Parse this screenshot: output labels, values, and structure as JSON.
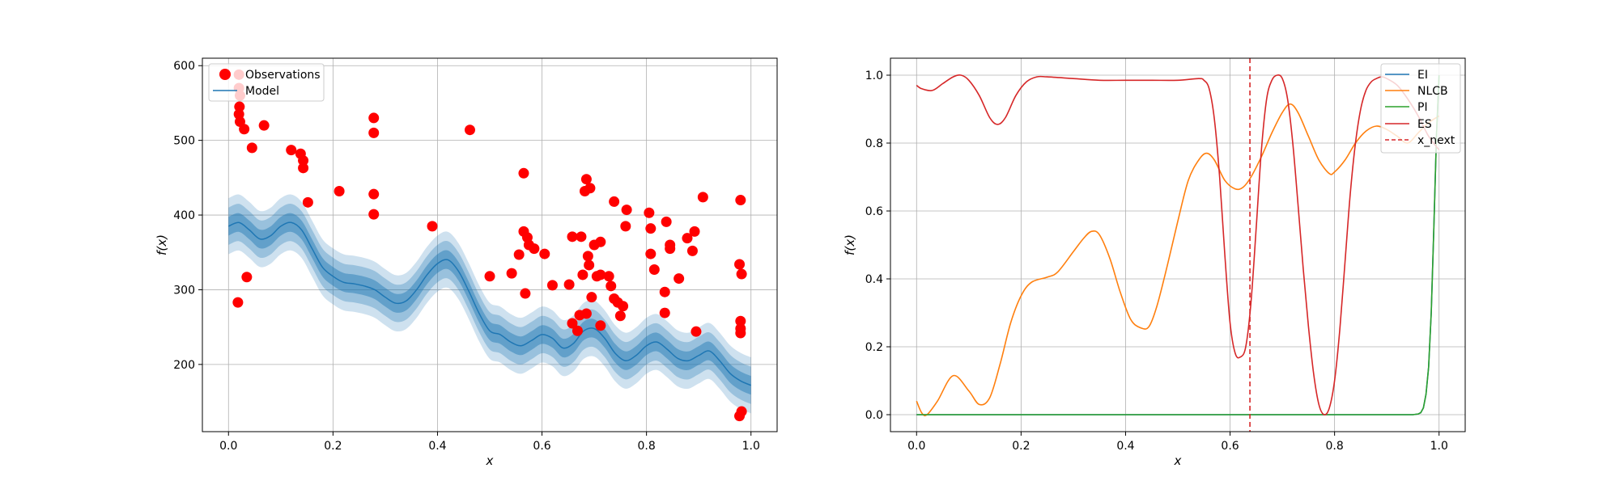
{
  "chart_data": [
    {
      "type": "line",
      "panel": "left",
      "xlabel": "x",
      "ylabel": "f(x)",
      "xlim": [
        -0.05,
        1.05
      ],
      "ylim": [
        110,
        610
      ],
      "xticks": [
        0.0,
        0.2,
        0.4,
        0.6,
        0.8,
        1.0
      ],
      "xtick_labels": [
        "0.0",
        "0.2",
        "0.4",
        "0.6",
        "0.8",
        "1.0"
      ],
      "yticks": [
        200,
        300,
        400,
        500,
        600
      ],
      "ytick_labels": [
        "200",
        "300",
        "400",
        "500",
        "600"
      ],
      "grid": true,
      "legend": {
        "position": "top-left",
        "entries": [
          {
            "label": "Observations",
            "marker": "circle",
            "color": "#ff0000"
          },
          {
            "label": "Model",
            "marker": "line",
            "color": "#1f77b4"
          }
        ]
      },
      "model": {
        "name": "Model",
        "color": "#1f77b4",
        "band_sigmas": [
          1,
          2,
          3
        ],
        "std": 12.5,
        "x": [
          0.0,
          0.02,
          0.04,
          0.06,
          0.08,
          0.1,
          0.12,
          0.14,
          0.16,
          0.18,
          0.2,
          0.22,
          0.24,
          0.26,
          0.28,
          0.3,
          0.32,
          0.34,
          0.36,
          0.38,
          0.4,
          0.42,
          0.44,
          0.46,
          0.48,
          0.5,
          0.52,
          0.54,
          0.56,
          0.58,
          0.6,
          0.62,
          0.64,
          0.66,
          0.68,
          0.7,
          0.72,
          0.74,
          0.76,
          0.78,
          0.8,
          0.82,
          0.84,
          0.86,
          0.88,
          0.9,
          0.92,
          0.94,
          0.96,
          0.98,
          1.0
        ],
        "y": [
          385,
          390,
          380,
          368,
          372,
          385,
          390,
          380,
          355,
          330,
          318,
          310,
          308,
          305,
          300,
          290,
          282,
          285,
          300,
          320,
          335,
          340,
          325,
          298,
          268,
          245,
          240,
          230,
          225,
          232,
          240,
          235,
          222,
          228,
          245,
          248,
          235,
          215,
          205,
          212,
          225,
          230,
          220,
          208,
          205,
          212,
          218,
          205,
          188,
          178,
          172
        ]
      },
      "observations": {
        "name": "Observations",
        "color": "#ff0000",
        "points": [
          [
            0.02,
            588
          ],
          [
            0.02,
            570
          ],
          [
            0.022,
            560
          ],
          [
            0.021,
            545
          ],
          [
            0.02,
            535
          ],
          [
            0.022,
            525
          ],
          [
            0.03,
            515
          ],
          [
            0.045,
            490
          ],
          [
            0.068,
            520
          ],
          [
            0.018,
            283
          ],
          [
            0.035,
            317
          ],
          [
            0.12,
            487
          ],
          [
            0.138,
            482
          ],
          [
            0.143,
            473
          ],
          [
            0.143,
            463
          ],
          [
            0.152,
            417
          ],
          [
            0.212,
            432
          ],
          [
            0.278,
            530
          ],
          [
            0.278,
            510
          ],
          [
            0.278,
            428
          ],
          [
            0.278,
            401
          ],
          [
            0.39,
            385
          ],
          [
            0.462,
            514
          ],
          [
            0.5,
            318
          ],
          [
            0.542,
            322
          ],
          [
            0.556,
            347
          ],
          [
            0.565,
            456
          ],
          [
            0.565,
            378
          ],
          [
            0.572,
            370
          ],
          [
            0.568,
            295
          ],
          [
            0.575,
            360
          ],
          [
            0.585,
            355
          ],
          [
            0.605,
            348
          ],
          [
            0.62,
            306
          ],
          [
            0.652,
            307
          ],
          [
            0.658,
            371
          ],
          [
            0.658,
            255
          ],
          [
            0.668,
            245
          ],
          [
            0.672,
            266
          ],
          [
            0.675,
            371
          ],
          [
            0.678,
            320
          ],
          [
            0.685,
            448
          ],
          [
            0.682,
            432
          ],
          [
            0.688,
            345
          ],
          [
            0.685,
            268
          ],
          [
            0.69,
            333
          ],
          [
            0.692,
            436
          ],
          [
            0.695,
            290
          ],
          [
            0.7,
            360
          ],
          [
            0.705,
            318
          ],
          [
            0.712,
            364
          ],
          [
            0.712,
            252
          ],
          [
            0.712,
            320
          ],
          [
            0.728,
            318
          ],
          [
            0.732,
            305
          ],
          [
            0.738,
            418
          ],
          [
            0.738,
            288
          ],
          [
            0.745,
            283
          ],
          [
            0.75,
            265
          ],
          [
            0.755,
            278
          ],
          [
            0.76,
            385
          ],
          [
            0.762,
            407
          ],
          [
            0.805,
            403
          ],
          [
            0.808,
            382
          ],
          [
            0.808,
            348
          ],
          [
            0.815,
            327
          ],
          [
            0.835,
            297
          ],
          [
            0.835,
            269
          ],
          [
            0.838,
            391
          ],
          [
            0.845,
            360
          ],
          [
            0.845,
            355
          ],
          [
            0.862,
            315
          ],
          [
            0.878,
            369
          ],
          [
            0.888,
            352
          ],
          [
            0.892,
            378
          ],
          [
            0.895,
            244
          ],
          [
            0.908,
            424
          ],
          [
            0.978,
            334
          ],
          [
            0.98,
            420
          ],
          [
            0.982,
            321
          ],
          [
            0.98,
            258
          ],
          [
            0.98,
            248
          ],
          [
            0.98,
            242
          ],
          [
            0.982,
            137
          ],
          [
            0.978,
            131
          ]
        ]
      }
    },
    {
      "type": "line",
      "panel": "right",
      "xlabel": "x",
      "ylabel": "f(x)",
      "xlim": [
        -0.05,
        1.05
      ],
      "ylim": [
        -0.05,
        1.05
      ],
      "xticks": [
        0.0,
        0.2,
        0.4,
        0.6,
        0.8,
        1.0
      ],
      "xtick_labels": [
        "0.0",
        "0.2",
        "0.4",
        "0.6",
        "0.8",
        "1.0"
      ],
      "yticks": [
        0.0,
        0.2,
        0.4,
        0.6,
        0.8,
        1.0
      ],
      "ytick_labels": [
        "0.0",
        "0.2",
        "0.4",
        "0.6",
        "0.8",
        "1.0"
      ],
      "grid": true,
      "legend": {
        "position": "top-right",
        "entries": [
          {
            "label": "EI",
            "color": "#1f77b4",
            "style": "solid"
          },
          {
            "label": "NLCB",
            "color": "#ff7f0e",
            "style": "solid"
          },
          {
            "label": "PI",
            "color": "#2ca02c",
            "style": "solid"
          },
          {
            "label": "ES",
            "color": "#d62728",
            "style": "solid"
          },
          {
            "label": "x_next",
            "color": "#d62728",
            "style": "dashed"
          }
        ]
      },
      "series": [
        {
          "name": "EI",
          "color": "#1f77b4",
          "x": [
            0.0,
            0.1,
            0.2,
            0.3,
            0.4,
            0.5,
            0.6,
            0.7,
            0.8,
            0.9,
            0.94,
            0.95,
            0.96,
            0.965,
            0.97,
            0.975,
            0.98,
            0.985,
            0.99,
            0.995,
            1.0
          ],
          "y": [
            0.0,
            0.0,
            0.0,
            0.0,
            0.0,
            0.0,
            0.0,
            0.0,
            0.0,
            0.0,
            0.0,
            0.0,
            0.002,
            0.006,
            0.02,
            0.06,
            0.14,
            0.3,
            0.55,
            0.82,
            1.0
          ]
        },
        {
          "name": "NLCB",
          "color": "#ff7f0e",
          "x": [
            0.0,
            0.01,
            0.02,
            0.04,
            0.07,
            0.1,
            0.12,
            0.14,
            0.16,
            0.18,
            0.2,
            0.22,
            0.25,
            0.27,
            0.3,
            0.32,
            0.335,
            0.35,
            0.37,
            0.39,
            0.41,
            0.43,
            0.445,
            0.46,
            0.48,
            0.5,
            0.52,
            0.54,
            0.555,
            0.57,
            0.59,
            0.61,
            0.625,
            0.64,
            0.66,
            0.68,
            0.7,
            0.715,
            0.73,
            0.75,
            0.77,
            0.79,
            0.8,
            0.82,
            0.84,
            0.86,
            0.88,
            0.9,
            0.92,
            0.94,
            0.96,
            0.98,
            1.0
          ],
          "y": [
            0.04,
            0.005,
            0.0,
            0.04,
            0.115,
            0.07,
            0.03,
            0.05,
            0.15,
            0.27,
            0.35,
            0.39,
            0.405,
            0.42,
            0.48,
            0.52,
            0.54,
            0.53,
            0.46,
            0.36,
            0.28,
            0.255,
            0.26,
            0.32,
            0.44,
            0.57,
            0.69,
            0.75,
            0.77,
            0.75,
            0.69,
            0.665,
            0.67,
            0.7,
            0.76,
            0.83,
            0.89,
            0.915,
            0.89,
            0.82,
            0.75,
            0.71,
            0.715,
            0.75,
            0.8,
            0.835,
            0.85,
            0.84,
            0.82,
            0.8,
            0.83,
            0.86,
            0.88
          ]
        },
        {
          "name": "PI",
          "color": "#2ca02c",
          "x": [
            0.0,
            0.1,
            0.2,
            0.3,
            0.4,
            0.5,
            0.6,
            0.7,
            0.8,
            0.9,
            0.94,
            0.95,
            0.96,
            0.965,
            0.97,
            0.975,
            0.98,
            0.985,
            0.99,
            0.995,
            1.0
          ],
          "y": [
            0.0,
            0.0,
            0.0,
            0.0,
            0.0,
            0.0,
            0.0,
            0.0,
            0.0,
            0.0,
            0.0,
            0.0,
            0.002,
            0.006,
            0.02,
            0.06,
            0.14,
            0.3,
            0.55,
            0.82,
            1.0
          ]
        },
        {
          "name": "ES",
          "color": "#d62728",
          "x": [
            0.0,
            0.01,
            0.03,
            0.05,
            0.07,
            0.085,
            0.1,
            0.12,
            0.14,
            0.155,
            0.17,
            0.19,
            0.21,
            0.23,
            0.25,
            0.3,
            0.35,
            0.4,
            0.45,
            0.5,
            0.54,
            0.55,
            0.56,
            0.57,
            0.58,
            0.59,
            0.6,
            0.61,
            0.62,
            0.63,
            0.64,
            0.65,
            0.66,
            0.67,
            0.68,
            0.69,
            0.7,
            0.71,
            0.72,
            0.73,
            0.74,
            0.75,
            0.76,
            0.77,
            0.78,
            0.79,
            0.8,
            0.81,
            0.82,
            0.83,
            0.84,
            0.85,
            0.86,
            0.87,
            0.88,
            0.89,
            0.9,
            0.92,
            0.94,
            0.96,
            0.98,
            1.0
          ],
          "y": [
            0.97,
            0.96,
            0.955,
            0.975,
            0.995,
            1.0,
            0.985,
            0.94,
            0.875,
            0.855,
            0.875,
            0.94,
            0.98,
            0.995,
            0.995,
            0.99,
            0.985,
            0.985,
            0.985,
            0.985,
            0.99,
            0.985,
            0.96,
            0.87,
            0.7,
            0.47,
            0.27,
            0.18,
            0.17,
            0.2,
            0.33,
            0.55,
            0.78,
            0.93,
            0.985,
            1.0,
            0.99,
            0.93,
            0.8,
            0.62,
            0.43,
            0.26,
            0.12,
            0.03,
            0.0,
            0.02,
            0.1,
            0.25,
            0.45,
            0.65,
            0.8,
            0.9,
            0.955,
            0.98,
            0.99,
            0.995,
            0.99,
            0.97,
            0.93,
            0.88,
            0.82,
            0.78
          ]
        }
      ],
      "x_next": {
        "name": "x_next",
        "x": 0.638,
        "color": "#d62728"
      }
    }
  ]
}
